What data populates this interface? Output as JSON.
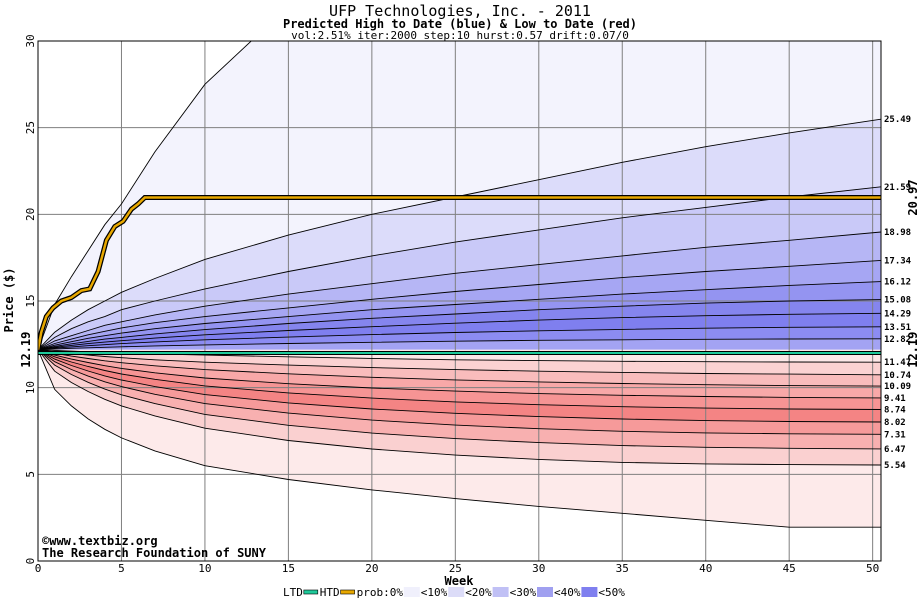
{
  "chart_data": {
    "type": "area",
    "title": "UFP Technologies, Inc. - 2011",
    "subtitle": "Predicted High to Date (blue) &  Low to Date (red)",
    "params": "vol:2.51% iter:2000 step:10 hurst:0.57 drift:0.07/0",
    "xlabel": "Week",
    "ylabel": "Price ($)",
    "xlim": [
      0,
      50.5
    ],
    "ylim": [
      0,
      30
    ],
    "xticks": [
      0,
      5,
      10,
      15,
      20,
      25,
      30,
      35,
      40,
      45,
      50
    ],
    "yticks": [
      0,
      5,
      10,
      15,
      20,
      25,
      30
    ],
    "grid": true,
    "start_price": 12.19,
    "start_label_left": "12.19",
    "start_label_right": "12.19",
    "high_to_date_label": "20.97",
    "x": [
      0,
      1,
      2,
      3,
      4,
      5,
      7,
      10,
      15,
      20,
      25,
      30,
      35,
      40,
      45,
      50.5
    ],
    "upper_series": [
      {
        "name": "outer",
        "end_label": "",
        "values": [
          12.19,
          14.8,
          16.4,
          17.9,
          19.4,
          20.6,
          23.6,
          27.5,
          32,
          35,
          38,
          40,
          42,
          44,
          45,
          46
        ]
      },
      {
        "name": "",
        "end_label": "25.49",
        "values": [
          12.19,
          13.2,
          13.9,
          14.5,
          15.0,
          15.5,
          16.3,
          17.4,
          18.8,
          20.0,
          21.0,
          22.0,
          23.0,
          23.9,
          24.7,
          25.49
        ]
      },
      {
        "name": "",
        "end_label": "21.59",
        "values": [
          12.19,
          12.9,
          13.4,
          13.8,
          14.1,
          14.5,
          15.0,
          15.7,
          16.7,
          17.6,
          18.4,
          19.1,
          19.8,
          20.4,
          21.0,
          21.59
        ]
      },
      {
        "name": "",
        "end_label": "18.98",
        "values": [
          12.19,
          12.7,
          13.0,
          13.3,
          13.6,
          13.8,
          14.2,
          14.7,
          15.4,
          16.0,
          16.6,
          17.1,
          17.6,
          18.1,
          18.5,
          18.98
        ]
      },
      {
        "name": "",
        "end_label": "17.34",
        "values": [
          12.19,
          12.55,
          12.8,
          13.05,
          13.25,
          13.45,
          13.75,
          14.1,
          14.6,
          15.1,
          15.55,
          15.95,
          16.35,
          16.7,
          17.0,
          17.34
        ]
      },
      {
        "name": "",
        "end_label": "16.12",
        "values": [
          12.19,
          12.45,
          12.65,
          12.85,
          13.0,
          13.15,
          13.4,
          13.7,
          14.1,
          14.5,
          14.8,
          15.1,
          15.4,
          15.65,
          15.9,
          16.12
        ]
      },
      {
        "name": "",
        "end_label": "15.08",
        "values": [
          12.19,
          12.38,
          12.53,
          12.67,
          12.8,
          12.9,
          13.1,
          13.35,
          13.7,
          14.0,
          14.25,
          14.5,
          14.7,
          14.88,
          15.0,
          15.08
        ]
      },
      {
        "name": "",
        "end_label": "14.29",
        "values": [
          12.19,
          12.33,
          12.44,
          12.54,
          12.63,
          12.71,
          12.86,
          13.05,
          13.3,
          13.52,
          13.72,
          13.9,
          14.04,
          14.15,
          14.23,
          14.29
        ]
      },
      {
        "name": "",
        "end_label": "13.51",
        "values": [
          12.19,
          12.28,
          12.35,
          12.42,
          12.48,
          12.54,
          12.64,
          12.76,
          12.92,
          13.06,
          13.18,
          13.28,
          13.36,
          13.43,
          13.48,
          13.51
        ]
      },
      {
        "name": "",
        "end_label": "12.82",
        "values": [
          12.19,
          12.23,
          12.27,
          12.3,
          12.33,
          12.36,
          12.41,
          12.47,
          12.55,
          12.62,
          12.68,
          12.73,
          12.76,
          12.79,
          12.81,
          12.82
        ]
      }
    ],
    "lower_series": [
      {
        "name": "",
        "end_label": "11.47",
        "values": [
          12.19,
          12.15,
          12.11,
          12.07,
          12.03,
          12.0,
          11.95,
          11.88,
          11.78,
          11.69,
          11.61,
          11.56,
          11.52,
          11.5,
          11.48,
          11.47
        ]
      },
      {
        "name": "",
        "end_label": "10.74",
        "values": [
          12.19,
          12.07,
          11.97,
          11.88,
          11.8,
          11.73,
          11.61,
          11.47,
          11.3,
          11.16,
          11.04,
          10.95,
          10.88,
          10.82,
          10.78,
          10.74
        ]
      },
      {
        "name": "",
        "end_label": "10.09",
        "values": [
          12.19,
          11.98,
          11.82,
          11.68,
          11.55,
          11.44,
          11.26,
          11.04,
          10.8,
          10.6,
          10.45,
          10.33,
          10.24,
          10.17,
          10.12,
          10.09
        ]
      },
      {
        "name": "",
        "end_label": "9.41",
        "values": [
          12.19,
          11.88,
          11.65,
          11.45,
          11.27,
          11.11,
          10.86,
          10.56,
          10.23,
          9.98,
          9.8,
          9.66,
          9.56,
          9.49,
          9.44,
          9.41
        ]
      },
      {
        "name": "",
        "end_label": "8.74",
        "values": [
          12.19,
          11.78,
          11.48,
          11.22,
          10.99,
          10.79,
          10.48,
          10.1,
          9.7,
          9.4,
          9.18,
          9.02,
          8.9,
          8.82,
          8.77,
          8.74
        ]
      },
      {
        "name": "",
        "end_label": "8.02",
        "values": [
          12.19,
          11.65,
          11.28,
          10.96,
          10.68,
          10.44,
          10.06,
          9.6,
          9.12,
          8.77,
          8.52,
          8.33,
          8.19,
          8.1,
          8.05,
          8.02
        ]
      },
      {
        "name": "",
        "end_label": "7.31",
        "values": [
          12.19,
          11.5,
          11.05,
          10.67,
          10.34,
          10.06,
          9.62,
          9.08,
          8.53,
          8.13,
          7.84,
          7.63,
          7.48,
          7.39,
          7.34,
          7.31
        ]
      },
      {
        "name": "",
        "end_label": "6.47",
        "values": [
          12.19,
          11.3,
          10.76,
          10.31,
          9.92,
          9.59,
          9.08,
          8.46,
          7.83,
          7.38,
          7.06,
          6.83,
          6.66,
          6.56,
          6.5,
          6.47
        ]
      },
      {
        "name": "",
        "end_label": "5.54",
        "values": [
          12.19,
          10.95,
          10.3,
          9.78,
          9.33,
          8.95,
          8.37,
          7.66,
          6.95,
          6.46,
          6.11,
          5.86,
          5.69,
          5.6,
          5.56,
          5.54
        ]
      },
      {
        "name": "outer",
        "end_label": "",
        "values": [
          12.19,
          9.9,
          8.95,
          8.2,
          7.6,
          7.1,
          6.35,
          5.5,
          4.7,
          4.1,
          3.6,
          3.15,
          2.75,
          2.35,
          1.95,
          1.95
        ]
      }
    ],
    "upper_band_fills": [
      "#f3f3fd",
      "#dcdcfa",
      "#c9c9f8",
      "#b6b6f5",
      "#a6a6f3",
      "#9494f1",
      "#8585ee",
      "#7f7fef",
      "#8c8cf2",
      "#a3a3f3"
    ],
    "lower_band_fills": [
      "#fde8e8",
      "#fbd2d2",
      "#f9bcbc",
      "#f8a8a8",
      "#f69494",
      "#f48484",
      "#f69a9a",
      "#f8b0b0",
      "#fad0d0",
      "#fdeaea"
    ],
    "high_to_date_path": {
      "x": [
        0,
        0.2,
        0.5,
        0.9,
        1.4,
        2.0,
        2.6,
        3.1,
        3.6,
        4.1,
        4.6,
        5.1,
        5.6,
        6.0,
        6.4,
        50.5
      ],
      "y": [
        12.19,
        13.2,
        14.1,
        14.6,
        15.0,
        15.2,
        15.6,
        15.7,
        16.7,
        18.5,
        19.3,
        19.6,
        20.3,
        20.6,
        20.97,
        20.97
      ]
    },
    "ltd_level": 12.0,
    "htd_level": 12.19,
    "colors": {
      "htd_line": "#e8a800",
      "htd_outline": "#000000",
      "ltd_line": "#1fc99a",
      "label_green": "#008060",
      "label_gold": "#b07c00",
      "grid": "#7f7f7f",
      "outer_band": "#f3f3fd"
    },
    "legend": {
      "position": "bottom",
      "ltd": "LTD",
      "htd": "HTD",
      "prob_label": "prob:0%",
      "items": [
        {
          "label": "<10%",
          "color": "#f0f0fc"
        },
        {
          "label": "<20%",
          "color": "#dcdcf8"
        },
        {
          "label": "<30%",
          "color": "#c0c0f5"
        },
        {
          "label": "<40%",
          "color": "#a0a0f0"
        },
        {
          "label": "<50%",
          "color": "#7f7fef"
        }
      ]
    },
    "watermark": {
      "line1": "©www.textbiz.org",
      "line2": "The Research Foundation of SUNY"
    }
  }
}
